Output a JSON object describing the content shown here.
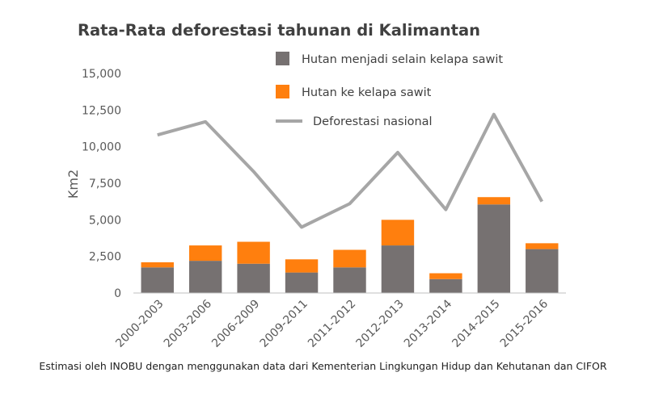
{
  "chart_data": {
    "type": "bar",
    "stacked": true,
    "title": "Rata-Rata deforestasi tahunan di Kalimantan",
    "ylabel": "Km2",
    "xlabel": "",
    "ylim": [
      0,
      15000
    ],
    "yticks": [
      "0",
      "2,500",
      "5,000",
      "7,500",
      "10,000",
      "12,500",
      "15,000"
    ],
    "ytick_values": [
      0,
      2500,
      5000,
      7500,
      10000,
      12500,
      15000
    ],
    "categories": [
      "2000-2003",
      "2003-2006",
      "2006-2009",
      "2009-2011",
      "2011-2012",
      "2012-2013",
      "2013-2014",
      "2014-2015",
      "2015-2016"
    ],
    "series": [
      {
        "name": "Hutan menjadi selain kelapa sawit",
        "type": "bar",
        "color": "#767171",
        "values": [
          1750,
          2200,
          2000,
          1400,
          1750,
          3250,
          950,
          6050,
          3000
        ]
      },
      {
        "name": "Hutan ke kelapa sawit",
        "type": "bar",
        "color": "#FF7F0E",
        "values": [
          350,
          1050,
          1500,
          900,
          1200,
          1750,
          400,
          500,
          400
        ]
      },
      {
        "name": "Deforestasi nasional",
        "type": "line",
        "color": "#A6A6A6",
        "values": [
          10800,
          11700,
          8300,
          4500,
          6100,
          9600,
          5700,
          12200,
          6250
        ]
      }
    ],
    "legend_position": "top-right",
    "grid": false,
    "source_note": "Estimasi oleh INOBU dengan menggunakan data dari Kementerian Lingkungan Hidup dan Kehutanan dan CIFOR"
  }
}
